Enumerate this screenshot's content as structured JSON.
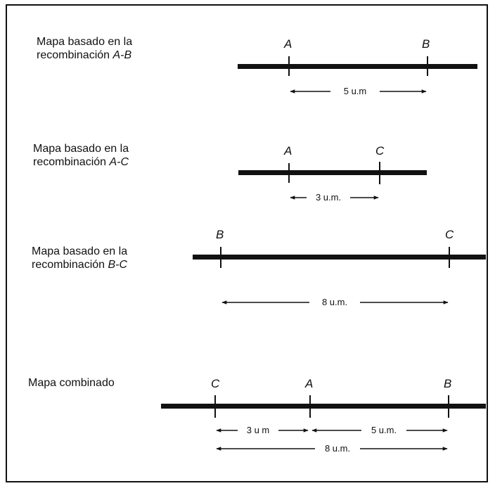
{
  "maps": [
    {
      "label_line1": "Mapa basado en la",
      "label_line2_prefix": "recombinación ",
      "label_line2_loci": "A-B",
      "loci": [
        "A",
        "B"
      ],
      "distances": [
        {
          "from": "A",
          "to": "B",
          "text": "5 u.m"
        }
      ]
    },
    {
      "label_line1": "Mapa basado en la",
      "label_line2_prefix": "recombinación ",
      "label_line2_loci": "A-C",
      "loci": [
        "A",
        "C"
      ],
      "distances": [
        {
          "from": "A",
          "to": "C",
          "text": "3 u.m."
        }
      ]
    },
    {
      "label_line1": "Mapa basado en la",
      "label_line2_prefix": "recombinación ",
      "label_line2_loci": "B-C",
      "loci": [
        "B",
        "C"
      ],
      "distances": [
        {
          "from": "B",
          "to": "C",
          "text": "8 u.m."
        }
      ]
    },
    {
      "label_line1": "Mapa combinado",
      "loci": [
        "C",
        "A",
        "B"
      ],
      "distances": [
        {
          "from": "C",
          "to": "A",
          "text": "3 u m"
        },
        {
          "from": "A",
          "to": "B",
          "text": "5 u.m."
        },
        {
          "from": "C",
          "to": "B",
          "text": "8 u.m."
        }
      ]
    }
  ]
}
